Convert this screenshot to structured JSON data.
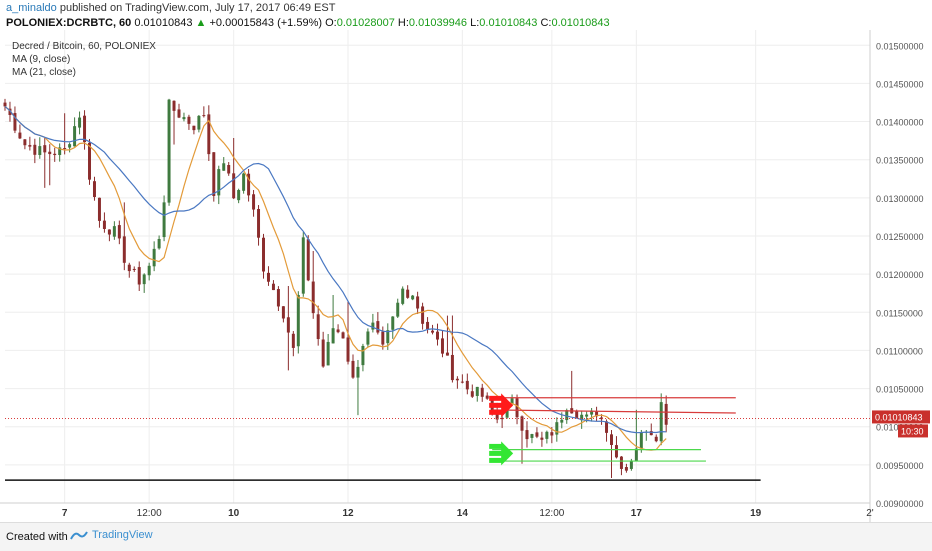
{
  "header": {
    "author": "a_minaldo",
    "published": "published on TradingView.com, July 17, 2017 06:49 EST",
    "symbol": "POLONIEX:DCRBTC, 60",
    "price": "0.01010843",
    "change_arrow": "▲",
    "change": "+0.00015843 (+1.59%)",
    "o_label": "O:",
    "o": "0.01028007",
    "h_label": "H:",
    "h": "0.01039946",
    "l_label": "L:",
    "l": "0.01010843",
    "c_label": "C:",
    "c": "0.01010843"
  },
  "legend": {
    "title": "Decred / Bitcoin, 60, POLONIEX",
    "ma9": "MA (9, close)",
    "ma21": "MA (21, close)"
  },
  "footer": {
    "created": "Created with",
    "brand": "TradingView",
    "brand_icon": "tradingview-logo-icon"
  },
  "colors": {
    "up": "#3f7a3f",
    "down": "#8b2d2d",
    "ma9": "#e39b3a",
    "ma21": "#4a78c2",
    "red_line": "#d83b3b",
    "green_line": "#4cd84c",
    "support": "#111111",
    "badge": "#c9302c",
    "grid": "#eeeeee"
  },
  "chart_data": {
    "type": "candlestick",
    "title": "Decred / Bitcoin, 60, POLONIEX",
    "ylim": [
      0.009,
      0.0152
    ],
    "y_ticks": [
      "0.01500000",
      "0.01450000",
      "0.01400000",
      "0.01350000",
      "0.01300000",
      "0.01250000",
      "0.01200000",
      "0.01150000",
      "0.01100000",
      "0.01050000",
      "0.01000000",
      "0.00950000",
      "0.00900000"
    ],
    "y_tick_values": [
      0.015,
      0.0145,
      0.014,
      0.0135,
      0.013,
      0.0125,
      0.012,
      0.0115,
      0.011,
      0.0105,
      0.01,
      0.0095,
      0.009
    ],
    "x_ticks": [
      {
        "label": "7",
        "t": 12
      },
      {
        "label": "12:00",
        "t": 29
      },
      {
        "label": "10",
        "t": 46
      },
      {
        "label": "12",
        "t": 69
      },
      {
        "label": "14",
        "t": 92
      },
      {
        "label": "12:00",
        "t": 110
      },
      {
        "label": "17",
        "t": 127
      },
      {
        "label": "19",
        "t": 151
      },
      {
        "label": "2'",
        "t": 174
      }
    ],
    "last_price": 0.01010843,
    "last_price_label": "0.01010843",
    "countdown": "10:30",
    "close_keypoints": [
      [
        0,
        0.0142
      ],
      [
        2,
        0.01395
      ],
      [
        4,
        0.0137
      ],
      [
        8,
        0.01358
      ],
      [
        12,
        0.01362
      ],
      [
        15,
        0.0141
      ],
      [
        17,
        0.0133
      ],
      [
        19,
        0.0127
      ],
      [
        22,
        0.01255
      ],
      [
        25,
        0.01205
      ],
      [
        27,
        0.01192
      ],
      [
        29,
        0.0121
      ],
      [
        31,
        0.0125
      ],
      [
        32,
        0.013
      ],
      [
        33,
        0.0142
      ],
      [
        35,
        0.0141
      ],
      [
        38,
        0.01395
      ],
      [
        40,
        0.0141
      ],
      [
        42,
        0.0131
      ],
      [
        44,
        0.0135
      ],
      [
        46,
        0.013
      ],
      [
        48,
        0.0133
      ],
      [
        50,
        0.0128
      ],
      [
        52,
        0.0121
      ],
      [
        54,
        0.0118
      ],
      [
        56,
        0.0115
      ],
      [
        58,
        0.011
      ],
      [
        60,
        0.0124
      ],
      [
        62,
        0.0115
      ],
      [
        64,
        0.0108
      ],
      [
        66,
        0.0113
      ],
      [
        68,
        0.0112
      ],
      [
        70,
        0.0106
      ],
      [
        72,
        0.0111
      ],
      [
        74,
        0.0113
      ],
      [
        76,
        0.011
      ],
      [
        78,
        0.0114
      ],
      [
        80,
        0.0118
      ],
      [
        82,
        0.01175
      ],
      [
        84,
        0.0114
      ],
      [
        86,
        0.0112
      ],
      [
        88,
        0.011
      ],
      [
        90,
        0.0107
      ],
      [
        93,
        0.0105
      ],
      [
        96,
        0.0104
      ],
      [
        99,
        0.0101
      ],
      [
        102,
        0.0103
      ],
      [
        105,
        0.0099
      ],
      [
        108,
        0.0098
      ],
      [
        111,
        0.01
      ],
      [
        113,
        0.0103
      ],
      [
        115,
        0.0102
      ],
      [
        117,
        0.0101
      ],
      [
        119,
        0.0102
      ],
      [
        121,
        0.01
      ],
      [
        123,
        0.0096
      ],
      [
        125,
        0.00945
      ],
      [
        127,
        0.00975
      ],
      [
        129,
        0.01
      ],
      [
        131,
        0.0099
      ],
      [
        132,
        0.0103
      ],
      [
        133,
        0.0101
      ]
    ],
    "ma_periods": [
      9,
      21
    ],
    "annotations": [
      {
        "kind": "hline",
        "color": "red",
        "value": 0.01038,
        "t_start": 98,
        "t_end": 147
      },
      {
        "kind": "line",
        "color": "red",
        "value_start": 0.01022,
        "value_end": 0.01018,
        "t_start": 98,
        "t_end": 147
      },
      {
        "kind": "hline",
        "color": "green",
        "value": 0.0097,
        "t_start": 98,
        "t_end": 140
      },
      {
        "kind": "hline",
        "color": "green",
        "value": 0.00955,
        "t_start": 98,
        "t_end": 141
      },
      {
        "kind": "hline",
        "color": "black",
        "value": 0.0093,
        "t_start": 0,
        "t_end": 152
      },
      {
        "kind": "hline",
        "color": "dotted-red",
        "value": 0.01010843,
        "t_start": 0,
        "t_end": 174
      },
      {
        "kind": "arrow",
        "color": "red",
        "value": 0.01028,
        "t": 99
      },
      {
        "kind": "arrow",
        "color": "green",
        "value": 0.00965,
        "t": 99
      }
    ]
  }
}
